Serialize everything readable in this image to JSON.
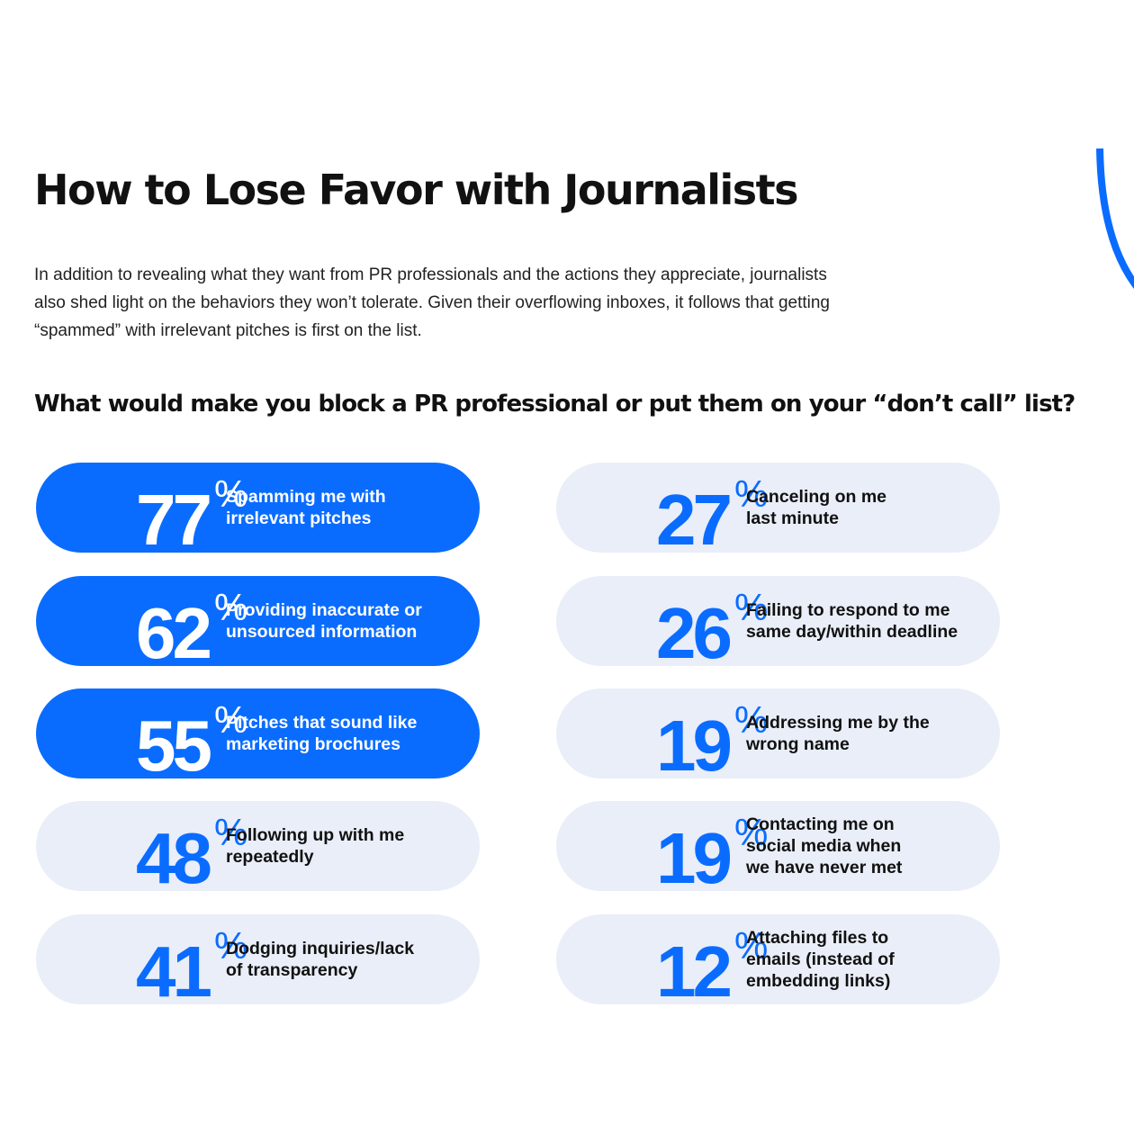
{
  "title": "How to Lose Favor with Journalists",
  "intro": "In addition to revealing what they want from PR professionals and the actions they appreciate, journalists also shed light on the behaviors they won’t tolerate. Given their overflowing inboxes, it follows that getting “spammed” with irrelevant pitches is first on the list.",
  "colors": {
    "accent": "#0a6cff",
    "pill_background": "#e9eef8",
    "text": "#111111"
  },
  "chart_data": {
    "type": "bar",
    "title": "What would make you block a PR professional or put them on your “don’t call” list?",
    "unit": "%",
    "categories": [
      "Spamming me with\nirrelevant pitches",
      "Providing inaccurate or\nunsourced information",
      "Pitches that sound like\nmarketing brochures",
      "Following up with me\nrepeatedly",
      "Dodging inquiries/lack\nof transparency",
      "Canceling on me\nlast minute",
      "Failing to respond to me\nsame day/within deadline",
      "Addressing me by the\nwrong name",
      "Contacting me on\nsocial media when\nwe have never met",
      "Attaching files to\nemails (instead of\nembedding links)"
    ],
    "values": [
      77,
      62,
      55,
      48,
      41,
      27,
      26,
      19,
      19,
      12
    ],
    "highlighted": [
      true,
      true,
      true,
      false,
      false,
      false,
      false,
      false,
      false,
      false
    ]
  }
}
